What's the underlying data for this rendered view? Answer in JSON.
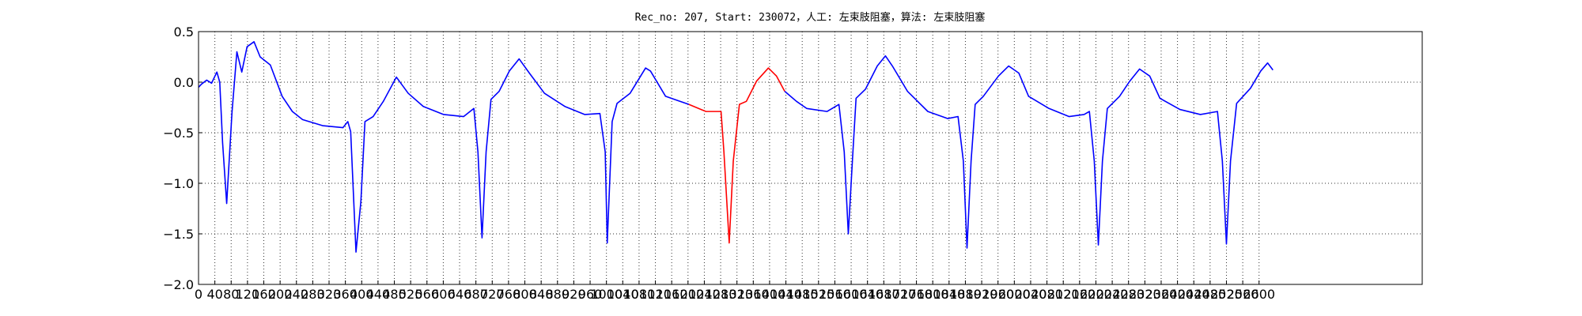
{
  "chart_data": {
    "type": "line",
    "title": "Rec_no: 207, Start: 230072，人工: 左束肢阻塞，算法: 左束肢阻塞",
    "xlim": [
      0,
      3000
    ],
    "xticks": [
      0,
      40,
      80,
      120,
      160,
      200,
      240,
      280,
      320,
      360,
      400,
      440,
      480,
      520,
      560,
      600,
      640,
      680,
      720,
      760,
      800,
      840,
      880,
      920,
      960,
      1000,
      1040,
      1080,
      1120,
      1160,
      1200,
      1240,
      1280,
      1320,
      1360,
      1400,
      1440,
      1480,
      1520,
      1560,
      1600,
      1640,
      1680,
      1720,
      1760,
      1800,
      1840,
      1880,
      1920,
      1960,
      2000,
      2040,
      2080,
      2120,
      2160,
      2200,
      2240,
      2280,
      2320,
      2360,
      2400,
      2440,
      2480,
      2520,
      2560,
      2600
    ],
    "ylim": [
      -2.0,
      0.5
    ],
    "yticks": [
      {
        "value": -2.0,
        "label": "−2.0"
      },
      {
        "value": -1.5,
        "label": "−1.5"
      },
      {
        "value": -1.0,
        "label": "−1.0"
      },
      {
        "value": -0.5,
        "label": "−0.5"
      },
      {
        "value": 0.0,
        "label": "0.0"
      },
      0.5
    ],
    "grid": true,
    "series": [
      {
        "color": "#0000ff",
        "x": [
          0,
          7,
          20,
          32,
          45,
          52,
          59,
          69,
          82,
          94,
          106,
          119,
          136,
          151,
          176,
          205,
          230,
          255,
          304,
          354,
          366,
          373,
          386,
          398,
          408,
          428,
          453,
          485,
          514,
          551,
          601,
          650,
          675,
          685,
          695,
          705,
          717,
          737,
          762,
          786,
          811,
          848,
          898,
          947,
          984,
          997,
          1002,
          1014,
          1026,
          1058,
          1096,
          1108,
          1145,
          1202,
          1300,
          1437,
          1466,
          1491,
          1541,
          1570,
          1583,
          1593,
          1603,
          1612,
          1635,
          1664,
          1684,
          1701,
          1738,
          1788,
          1837,
          1862,
          1875,
          1884,
          1894,
          1904,
          1924,
          1961,
          1986,
          2011,
          2035,
          2085,
          2134,
          2171,
          2184,
          2196,
          2206,
          2216,
          2228,
          2258,
          2283,
          2307,
          2332,
          2357,
          2406,
          2456,
          2498,
          2510,
          2520,
          2530,
          2545,
          2579,
          2604,
          2621,
          2634
        ],
        "values": [
          -0.05,
          -0.02,
          0.02,
          -0.01,
          0.1,
          0.0,
          -0.6,
          -1.2,
          -0.3,
          0.3,
          0.1,
          0.35,
          0.4,
          0.25,
          0.17,
          -0.14,
          -0.29,
          -0.37,
          -0.43,
          -0.45,
          -0.39,
          -0.49,
          -1.68,
          -1.18,
          -0.39,
          -0.34,
          -0.19,
          0.05,
          -0.11,
          -0.24,
          -0.32,
          -0.34,
          -0.26,
          -0.69,
          -1.54,
          -0.69,
          -0.17,
          -0.09,
          0.11,
          0.23,
          0.09,
          -0.11,
          -0.24,
          -0.32,
          -0.31,
          -0.69,
          -1.59,
          -0.39,
          -0.21,
          -0.11,
          0.14,
          0.11,
          -0.14,
          -0.22,
          null,
          -0.09,
          -0.19,
          -0.26,
          -0.29,
          -0.22,
          -0.69,
          -1.5,
          -0.78,
          -0.16,
          -0.07,
          0.16,
          0.26,
          0.16,
          -0.09,
          -0.29,
          -0.36,
          -0.34,
          -0.78,
          -1.64,
          -0.78,
          -0.22,
          -0.14,
          0.06,
          0.16,
          0.09,
          -0.14,
          -0.26,
          -0.34,
          -0.32,
          -0.29,
          -0.78,
          -1.61,
          -0.78,
          -0.26,
          -0.14,
          0.01,
          0.13,
          0.06,
          -0.16,
          -0.27,
          -0.32,
          -0.29,
          -0.78,
          -1.6,
          -0.78,
          -0.21,
          -0.06,
          0.11,
          0.19,
          0.12
        ]
      },
      {
        "color": "#ff0000",
        "x": [
          1202,
          1244,
          1281,
          1288,
          1301,
          1311,
          1326,
          1343,
          1368,
          1397,
          1417,
          1437
        ],
        "values": [
          -0.22,
          -0.29,
          -0.29,
          -0.69,
          -1.59,
          -0.78,
          -0.22,
          -0.19,
          0.01,
          0.14,
          0.06,
          -0.09
        ]
      }
    ]
  }
}
